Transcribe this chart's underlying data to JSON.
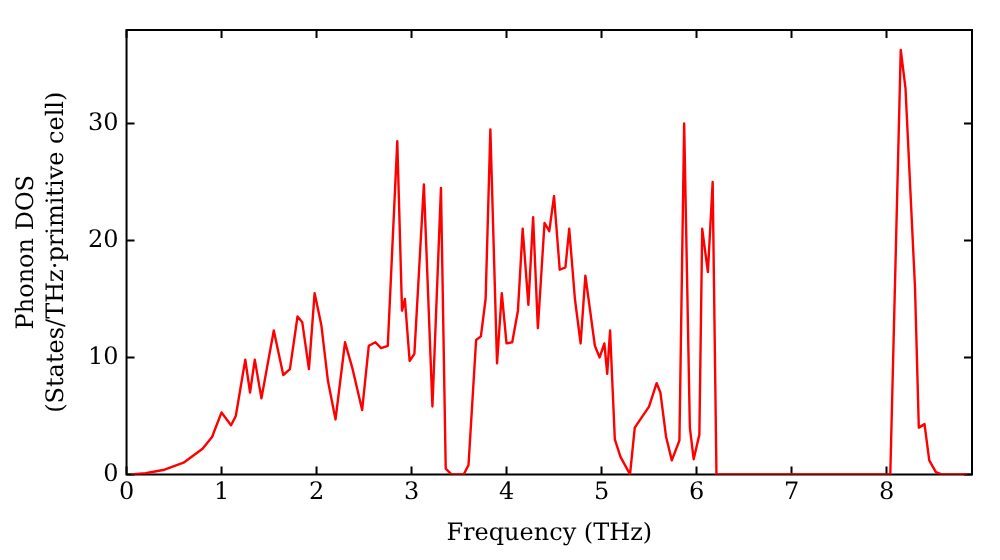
{
  "chart_data": {
    "type": "line",
    "xlabel": "Frequency (THz)",
    "ylabel": "Phonon DOS\n(States/THz·primitive cell)",
    "xlim": [
      0,
      8.9
    ],
    "ylim": [
      0,
      38
    ],
    "xticks": [
      0,
      1,
      2,
      3,
      4,
      5,
      6,
      7,
      8
    ],
    "yticks": [
      0,
      10,
      20,
      30
    ],
    "grid": false,
    "legend": false,
    "marker": "none",
    "line_style": "solid",
    "series": [
      {
        "color": "#ff0000",
        "x": [
          0.05,
          0.2,
          0.4,
          0.6,
          0.8,
          0.9,
          1.0,
          1.1,
          1.15,
          1.25,
          1.3,
          1.35,
          1.42,
          1.55,
          1.65,
          1.72,
          1.8,
          1.85,
          1.92,
          1.98,
          2.05,
          2.12,
          2.2,
          2.3,
          2.38,
          2.48,
          2.55,
          2.62,
          2.68,
          2.75,
          2.85,
          2.9,
          2.93,
          2.98,
          3.03,
          3.13,
          3.22,
          3.31,
          3.36,
          3.42,
          3.55,
          3.6,
          3.68,
          3.73,
          3.78,
          3.83,
          3.9,
          3.95,
          4.0,
          4.06,
          4.12,
          4.17,
          4.23,
          4.28,
          4.33,
          4.4,
          4.45,
          4.5,
          4.56,
          4.62,
          4.66,
          4.72,
          4.78,
          4.83,
          4.88,
          4.93,
          4.98,
          5.03,
          5.06,
          5.09,
          5.14,
          5.2,
          5.3,
          5.35,
          5.45,
          5.5,
          5.58,
          5.62,
          5.68,
          5.74,
          5.82,
          5.87,
          5.93,
          5.97,
          6.03,
          6.06,
          6.12,
          6.17,
          6.21,
          8.04,
          8.15,
          8.2,
          8.3,
          8.34,
          8.4,
          8.45,
          8.52,
          8.58,
          8.85
        ],
        "values": [
          0,
          0.1,
          0.4,
          1.0,
          2.2,
          3.2,
          5.3,
          4.2,
          5,
          9.8,
          7,
          9.8,
          6.5,
          12.3,
          8.5,
          9,
          13.5,
          13,
          9,
          15.5,
          12.8,
          8,
          4.7,
          11.3,
          9,
          5.5,
          11,
          11.3,
          10.8,
          11,
          28.5,
          14,
          15,
          9.7,
          10.3,
          24.8,
          5.8,
          24.5,
          0.5,
          0,
          0,
          0.8,
          11.5,
          11.8,
          15,
          29.5,
          9.5,
          15.5,
          11.2,
          11.3,
          14,
          21,
          14.5,
          22,
          12.5,
          21.5,
          20.8,
          23.8,
          17.5,
          17.7,
          21,
          15,
          11.2,
          17,
          14,
          11,
          10,
          11.2,
          8.6,
          12.3,
          3,
          1.5,
          0,
          4,
          5.2,
          5.8,
          7.8,
          7,
          3.2,
          1.2,
          2.9,
          30,
          4,
          1.3,
          3.4,
          21,
          17.3,
          25,
          0,
          0,
          36.3,
          33,
          16,
          4,
          4.3,
          1.2,
          0.2,
          0,
          0
        ]
      }
    ]
  }
}
